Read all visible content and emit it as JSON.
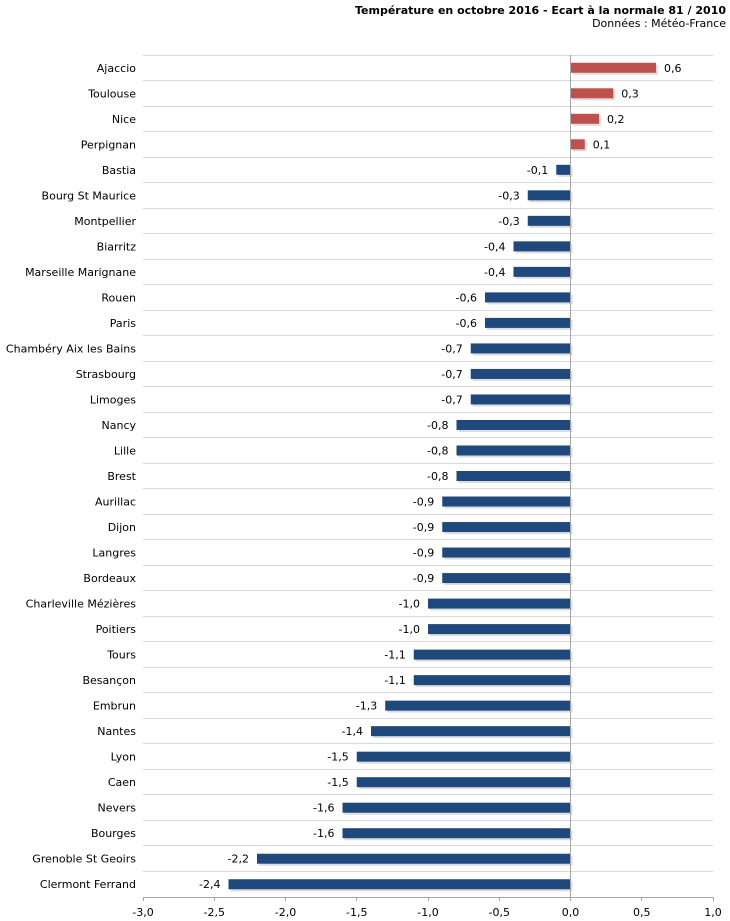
{
  "chart_data": {
    "type": "bar",
    "title": "Température en octobre 2016 - Ecart à la normale 81 / 2010",
    "subtitle": "Données : Météo-France",
    "categories": [
      "Ajaccio",
      "Toulouse",
      "Nice",
      "Perpignan",
      "Bastia",
      "Bourg St Maurice",
      "Montpellier",
      "Biarritz",
      "Marseille Marignane",
      "Rouen",
      "Paris",
      "Chambéry Aix les Bains",
      "Strasbourg",
      "Limoges",
      "Nancy",
      "Lille",
      "Brest",
      "Aurillac",
      "Dijon",
      "Langres",
      "Bordeaux",
      "Charleville Mézières",
      "Poitiers",
      "Tours",
      "Besançon",
      "Embrun",
      "Nantes",
      "Lyon",
      "Caen",
      "Nevers",
      "Bourges",
      "Grenoble St Geoirs",
      "Clermont Ferrand"
    ],
    "values": [
      0.6,
      0.3,
      0.2,
      0.1,
      -0.1,
      -0.3,
      -0.3,
      -0.4,
      -0.4,
      -0.6,
      -0.6,
      -0.7,
      -0.7,
      -0.7,
      -0.8,
      -0.8,
      -0.8,
      -0.9,
      -0.9,
      -0.9,
      -0.9,
      -1.0,
      -1.0,
      -1.1,
      -1.1,
      -1.3,
      -1.4,
      -1.5,
      -1.5,
      -1.6,
      -1.6,
      -2.2,
      -2.4
    ],
    "data_labels": [
      "0,6",
      "0,3",
      "0,2",
      "0,1",
      "-0,1",
      "-0,3",
      "-0,3",
      "-0,4",
      "-0,4",
      "-0,6",
      "-0,6",
      "-0,7",
      "-0,7",
      "-0,7",
      "-0,8",
      "-0,8",
      "-0,8",
      "-0,9",
      "-0,9",
      "-0,9",
      "-0,9",
      "-1,0",
      "-1,0",
      "-1,1",
      "-1,1",
      "-1,3",
      "-1,4",
      "-1,5",
      "-1,5",
      "-1,6",
      "-1,6",
      "-2,2",
      "-2,4"
    ],
    "xlim": [
      -3.0,
      1.0
    ],
    "xticks": [
      -3.0,
      -2.5,
      -2.0,
      -1.5,
      -1.0,
      -0.5,
      0.0,
      0.5,
      1.0
    ],
    "xtick_labels": [
      "-3,0",
      "-2,5",
      "-2,0",
      "-1,5",
      "-1,0",
      "-0,5",
      "0,0",
      "0,5",
      "1,0"
    ],
    "grid": true,
    "legend": null,
    "colors": {
      "positive_bar": "#C0504D",
      "negative_bar": "#1F497D",
      "bar_shadow": "#BFBFBF",
      "gridline": "#D9D9D9",
      "axis": "#A6A6A6",
      "text": "#000000"
    }
  }
}
